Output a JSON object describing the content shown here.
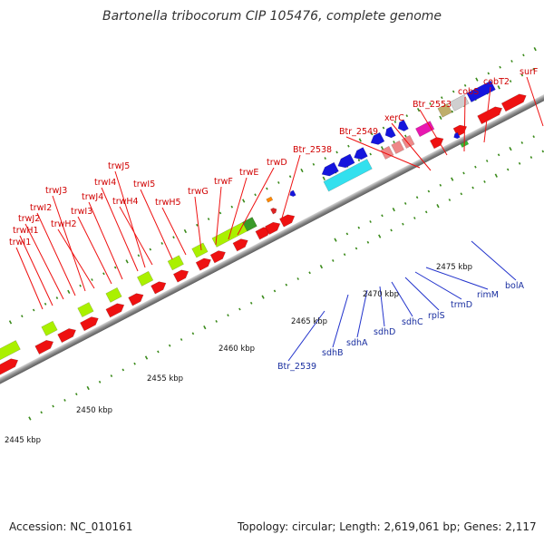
{
  "title": "Bartonella tribocorum CIP 105476, complete genome",
  "footer": {
    "accession": "Accession: NC_010161",
    "summary": "Topology: circular; Length: 2,619,061 bp; Genes: 2,117"
  },
  "colors": {
    "forward_gene": "#ee1111",
    "lime_gene": "#aaf000",
    "blue_gene": "#1515dd",
    "cyan_gene": "#33e0ee",
    "pink_gene": "#ee8888",
    "magenta_gene": "#e817b0",
    "tan_gene": "#bfae6a",
    "silver_gene": "#cfcfcf",
    "tick_green": "#3a8a1a",
    "label_red": "#d00000",
    "label_blue": "#1a2fa0",
    "backbone": "#8c8c8c"
  },
  "scale_labels": [
    "2445 kbp",
    "2450 kbp",
    "2455 kbp",
    "2460 kbp",
    "2465 kbp",
    "2470 kbp",
    "2475 kbp"
  ],
  "upper_labels": [
    "trwI1",
    "trwH1",
    "trwJ2",
    "trwI2",
    "trwH2",
    "trwJ3",
    "trwI3",
    "trwJ4",
    "trwI4",
    "trwH4",
    "trwJ5",
    "trwI5",
    "trwH5",
    "trwG",
    "trwF",
    "trwE",
    "trwD",
    "Btr_2538",
    "Btr_2549",
    "xerC",
    "Btr_2553",
    "cobS",
    "cobT2",
    "surF"
  ],
  "lower_labels": [
    "Btr_2539",
    "sdhB",
    "sdhA",
    "sdhD",
    "sdhC",
    "rplS",
    "trmD",
    "rimM",
    "bolA"
  ]
}
